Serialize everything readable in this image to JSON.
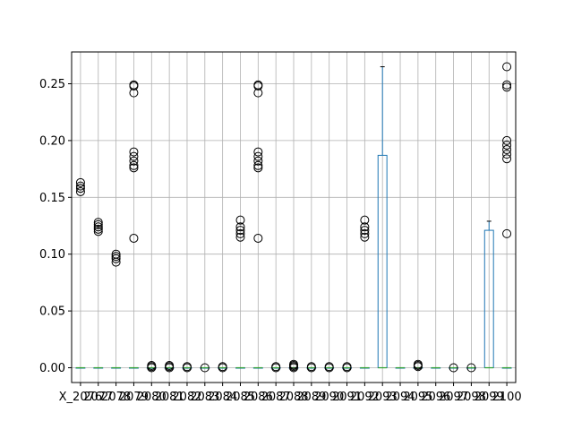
{
  "chart_data": {
    "type": "box",
    "title": "",
    "xlabel": "",
    "ylabel": "",
    "ylim": [
      -0.013,
      0.278
    ],
    "yticks": [
      0.0,
      0.05,
      0.1,
      0.15,
      0.2,
      0.25
    ],
    "ytick_labels": [
      "0.00",
      "0.05",
      "0.10",
      "0.15",
      "0.20",
      "0.25"
    ],
    "grid": true,
    "colors": {
      "box": "#1f77b4",
      "median": "#2ca02c",
      "whisker": "#000000",
      "flier": "#000000",
      "grid": "#b0b0b0"
    },
    "xtick_labels": [
      "X_2076",
      "2077",
      "2078",
      "2079",
      "2080",
      "2081",
      "2082",
      "2083",
      "2084",
      "2085",
      "2086",
      "2087",
      "2088",
      "2089",
      "2090",
      "2091",
      "2092",
      "2093",
      "2094",
      "2095",
      "2096",
      "2097",
      "2098",
      "2099",
      "2100"
    ],
    "boxes": [
      {
        "q1": 0,
        "median": 0,
        "q3": 0,
        "whislo": 0,
        "whishi": 0,
        "fliers": [
          0.155,
          0.158,
          0.16,
          0.163
        ]
      },
      {
        "q1": 0,
        "median": 0,
        "q3": 0,
        "whislo": 0,
        "whishi": 0,
        "fliers": [
          0.12,
          0.122,
          0.124,
          0.126,
          0.128
        ]
      },
      {
        "q1": 0,
        "median": 0,
        "q3": 0,
        "whislo": 0,
        "whishi": 0,
        "fliers": [
          0.093,
          0.096,
          0.098,
          0.1
        ]
      },
      {
        "q1": 0,
        "median": 0,
        "q3": 0,
        "whislo": 0,
        "whishi": 0,
        "fliers": [
          0.114,
          0.176,
          0.178,
          0.182,
          0.186,
          0.19,
          0.242,
          0.248,
          0.249
        ]
      },
      {
        "q1": 0,
        "median": 0,
        "q3": 0,
        "whislo": 0,
        "whishi": 0,
        "fliers": [
          0.0,
          0.001,
          0.002
        ]
      },
      {
        "q1": 0,
        "median": 0,
        "q3": 0,
        "whislo": 0,
        "whishi": 0,
        "fliers": [
          0.0,
          0.001,
          0.002
        ]
      },
      {
        "q1": 0,
        "median": 0,
        "q3": 0,
        "whislo": 0,
        "whishi": 0,
        "fliers": [
          0.0,
          0.001
        ]
      },
      {
        "q1": 0,
        "median": 0,
        "q3": 0,
        "whislo": 0,
        "whishi": 0,
        "fliers": [
          0.0
        ]
      },
      {
        "q1": 0,
        "median": 0,
        "q3": 0,
        "whislo": 0,
        "whishi": 0,
        "fliers": [
          0.0,
          0.001
        ]
      },
      {
        "q1": 0,
        "median": 0,
        "q3": 0,
        "whislo": 0,
        "whishi": 0,
        "fliers": [
          0.115,
          0.118,
          0.121,
          0.124,
          0.13
        ]
      },
      {
        "q1": 0,
        "median": 0,
        "q3": 0,
        "whislo": 0,
        "whishi": 0,
        "fliers": [
          0.114,
          0.176,
          0.178,
          0.182,
          0.186,
          0.19,
          0.242,
          0.248,
          0.249
        ]
      },
      {
        "q1": 0,
        "median": 0,
        "q3": 0,
        "whislo": 0,
        "whishi": 0,
        "fliers": [
          0.0,
          0.001
        ]
      },
      {
        "q1": 0,
        "median": 0,
        "q3": 0,
        "whislo": 0,
        "whishi": 0,
        "fliers": [
          0.0,
          0.001,
          0.002,
          0.003
        ]
      },
      {
        "q1": 0,
        "median": 0,
        "q3": 0,
        "whislo": 0,
        "whishi": 0,
        "fliers": [
          0.0,
          0.001
        ]
      },
      {
        "q1": 0,
        "median": 0,
        "q3": 0,
        "whislo": 0,
        "whishi": 0,
        "fliers": [
          0.0,
          0.001
        ]
      },
      {
        "q1": 0,
        "median": 0,
        "q3": 0,
        "whislo": 0,
        "whishi": 0,
        "fliers": [
          0.0,
          0.001
        ]
      },
      {
        "q1": 0,
        "median": 0,
        "q3": 0,
        "whislo": 0,
        "whishi": 0,
        "fliers": [
          0.115,
          0.118,
          0.121,
          0.124,
          0.13
        ]
      },
      {
        "q1": 0,
        "median": 0,
        "q3": 0.187,
        "whislo": 0,
        "whishi": 0.265,
        "fliers": []
      },
      {
        "q1": 0,
        "median": 0,
        "q3": 0,
        "whislo": 0,
        "whishi": 0,
        "fliers": []
      },
      {
        "q1": 0,
        "median": 0,
        "q3": 0,
        "whislo": 0,
        "whishi": 0,
        "fliers": [
          0.001,
          0.002,
          0.003
        ]
      },
      {
        "q1": 0,
        "median": 0,
        "q3": 0,
        "whislo": 0,
        "whishi": 0,
        "fliers": []
      },
      {
        "q1": 0,
        "median": 0,
        "q3": 0,
        "whislo": 0,
        "whishi": 0,
        "fliers": [
          0.0
        ]
      },
      {
        "q1": 0,
        "median": 0,
        "q3": 0,
        "whislo": 0,
        "whishi": 0,
        "fliers": [
          0.0
        ]
      },
      {
        "q1": 0,
        "median": 0,
        "q3": 0.121,
        "whislo": 0,
        "whishi": 0.129,
        "fliers": []
      },
      {
        "q1": 0,
        "median": 0,
        "q3": 0,
        "whislo": 0,
        "whishi": 0,
        "fliers": [
          0.118,
          0.184,
          0.188,
          0.192,
          0.196,
          0.2,
          0.247,
          0.249,
          0.265
        ]
      }
    ]
  }
}
